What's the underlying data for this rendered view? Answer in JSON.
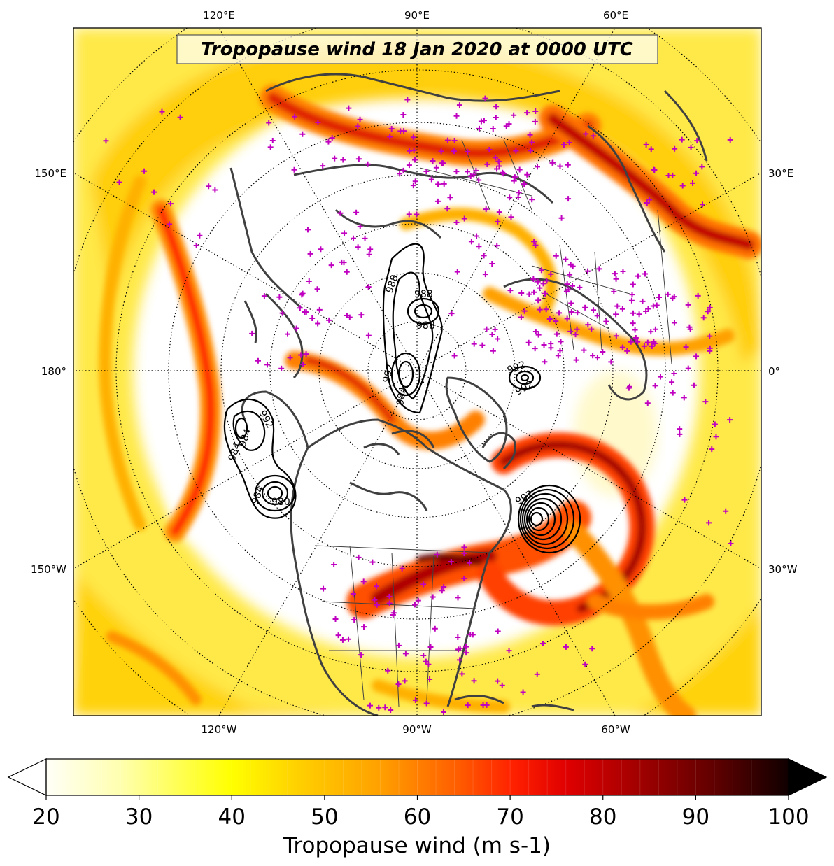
{
  "title": "Tropopause wind 18 Jan 2020 at 0000 UTC",
  "colorbar": {
    "label": "Tropopause wind (m s-1)",
    "ticks": [
      "20",
      "30",
      "40",
      "50",
      "60",
      "70",
      "80",
      "90",
      "100"
    ],
    "min": 20,
    "max": 100,
    "extend": "both",
    "colormap": "hot_r"
  },
  "lon_labels_top": [
    "120°E",
    "90°E",
    "60°E"
  ],
  "lon_labels_bottom": [
    "120°W",
    "90°W",
    "60°W"
  ],
  "lon_labels_left": [
    "150°E",
    "180°",
    "150°W"
  ],
  "lon_labels_right": [
    "30°E",
    "0°",
    "30°W"
  ],
  "contour_labels": [
    "988",
    "988",
    "988",
    "992",
    "984",
    "992",
    "992",
    "984",
    "980",
    "984",
    "992",
    "984",
    "992"
  ],
  "marker_color": "#c000c0",
  "coast_color": "#404040"
}
